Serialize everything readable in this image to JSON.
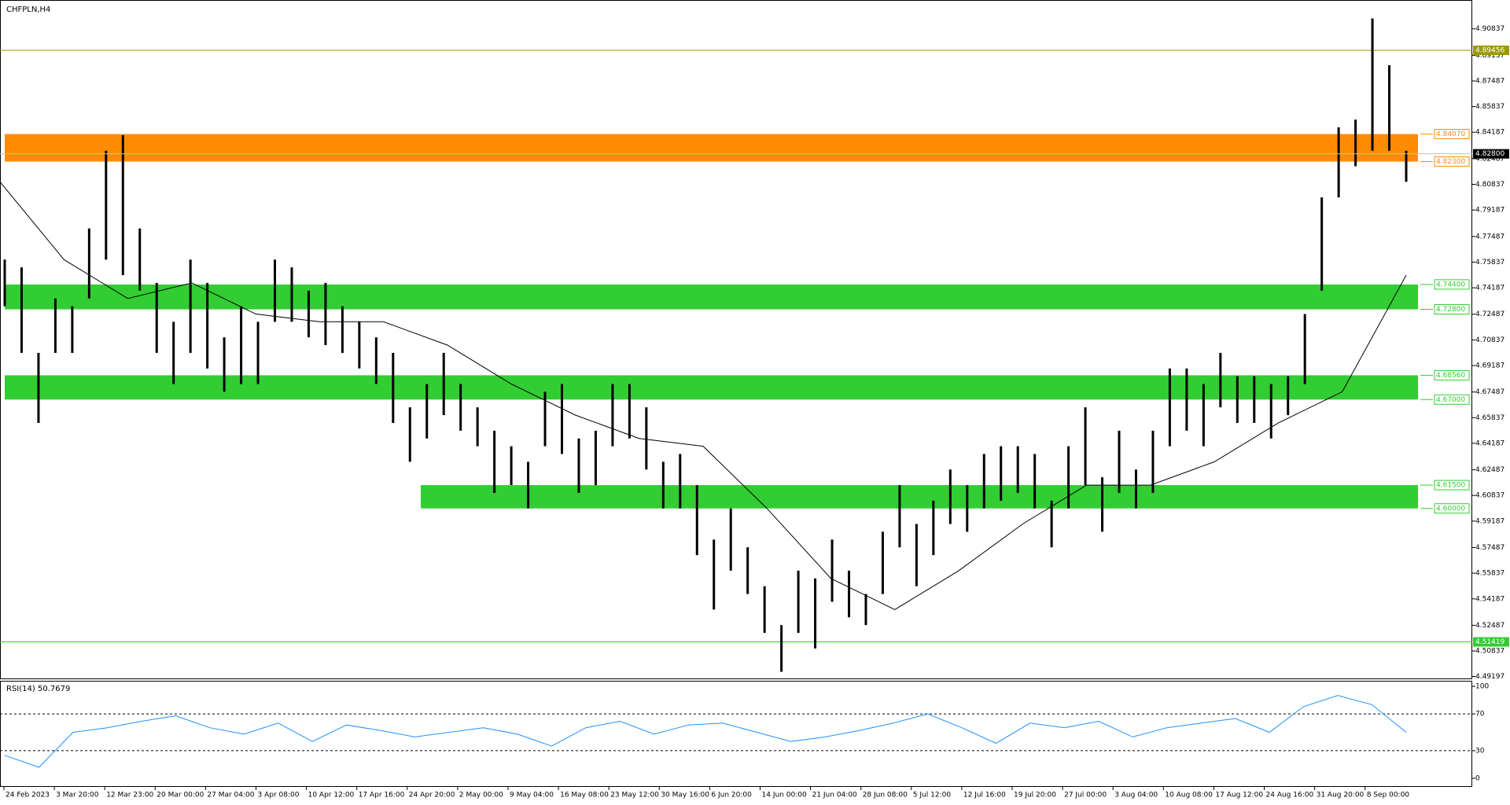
{
  "chart_data": {
    "type": "ohlc",
    "title": "CHFPLN,H4",
    "categories": [
      "24 Feb 2023",
      "3 Mar 20:00",
      "12 Mar 23:00",
      "20 Mar 00:00",
      "27 Mar 04:00",
      "3 Apr 08:00",
      "10 Apr 12:00",
      "17 Apr 16:00",
      "24 Apr 20:00",
      "2 May 00:00",
      "9 May 04:00",
      "16 May 08:00",
      "23 May 12:00",
      "30 May 16:00",
      "6 Jun 20:00",
      "14 Jun 00:00",
      "21 Jun 04:00",
      "28 Jun 08:00",
      "5 Jul 12:00",
      "12 Jul 16:00",
      "19 Jul 20:00",
      "27 Jul 00:00",
      "3 Aug 04:00",
      "10 Aug 08:00",
      "17 Aug 12:00",
      "24 Aug 16:00",
      "31 Aug 20:00",
      "8 Sep 00:00"
    ],
    "high": [
      4.76,
      4.755,
      4.7,
      4.735,
      4.73,
      4.78,
      4.83,
      4.84,
      4.78,
      4.745,
      4.72,
      4.76,
      4.745,
      4.71,
      4.73,
      4.72,
      4.76,
      4.755,
      4.74,
      4.745,
      4.73,
      4.72,
      4.71,
      4.7,
      4.665,
      4.68,
      4.7,
      4.68,
      4.665,
      4.65,
      4.64,
      4.63,
      4.675,
      4.68,
      4.645,
      4.65,
      4.68,
      4.68,
      4.665,
      4.63,
      4.635,
      4.615,
      4.58,
      4.6,
      4.575,
      4.55,
      4.525,
      4.56,
      4.555,
      4.58,
      4.56,
      4.545,
      4.585,
      4.615,
      4.59,
      4.605,
      4.625,
      4.615,
      4.635,
      4.64,
      4.64,
      4.635,
      4.605,
      4.64,
      4.665,
      4.62,
      4.65,
      4.625,
      4.65,
      4.69,
      4.69,
      4.68,
      4.7,
      4.685,
      4.685,
      4.68,
      4.685,
      4.725,
      4.8,
      4.845,
      4.85,
      4.915,
      4.885,
      4.83
    ],
    "low": [
      4.73,
      4.7,
      4.655,
      4.7,
      4.7,
      4.735,
      4.76,
      4.75,
      4.74,
      4.7,
      4.68,
      4.7,
      4.69,
      4.675,
      4.68,
      4.68,
      4.72,
      4.72,
      4.71,
      4.705,
      4.7,
      4.69,
      4.68,
      4.655,
      4.63,
      4.645,
      4.66,
      4.65,
      4.64,
      4.61,
      4.615,
      4.6,
      4.64,
      4.635,
      4.61,
      4.615,
      4.64,
      4.645,
      4.625,
      4.6,
      4.6,
      4.57,
      4.535,
      4.56,
      4.545,
      4.52,
      4.495,
      4.52,
      4.51,
      4.54,
      4.53,
      4.525,
      4.545,
      4.575,
      4.55,
      4.57,
      4.59,
      4.585,
      4.6,
      4.605,
      4.61,
      4.6,
      4.575,
      4.6,
      4.615,
      4.585,
      4.61,
      4.6,
      4.61,
      4.64,
      4.65,
      4.64,
      4.665,
      4.655,
      4.655,
      4.645,
      4.66,
      4.68,
      4.74,
      4.8,
      4.82,
      4.83,
      4.83,
      4.81
    ],
    "color": "#000000",
    "ylim": [
      4.4907,
      4.9269
    ],
    "yticks": [
      4.90837,
      4.89137,
      4.87487,
      4.85837,
      4.84187,
      4.82487,
      4.80837,
      4.79187,
      4.77487,
      4.75837,
      4.74187,
      4.72487,
      4.70837,
      4.69187,
      4.67487,
      4.65837,
      4.64187,
      4.62487,
      4.60837,
      4.59187,
      4.57487,
      4.55837,
      4.54187,
      4.52487,
      4.50837,
      4.49197
    ],
    "moving_average": {
      "values": [
        4.81,
        4.76,
        4.735,
        4.745,
        4.725,
        4.72,
        4.72,
        4.705,
        4.68,
        4.66,
        4.645,
        4.64,
        4.6,
        4.555,
        4.535,
        4.56,
        4.59,
        4.615,
        4.615,
        4.63,
        4.655,
        4.675,
        4.75
      ],
      "color": "#000000"
    },
    "levels": [
      {
        "value": 4.89456,
        "color": "#9a9a00"
      },
      {
        "value": 4.51419,
        "color": "#33cc33"
      }
    ],
    "current_price": {
      "value": 4.828,
      "label": "4.82800"
    },
    "zones": [
      {
        "top": {
          "value": 4.8407,
          "label": "4.84070"
        },
        "bottom": {
          "value": 4.823,
          "label": "4.82300"
        },
        "color": "#ff8c00"
      },
      {
        "top": {
          "value": 4.744,
          "label": "4.74400"
        },
        "bottom": {
          "value": 4.728,
          "label": "4.72800"
        },
        "color": "#32cd32"
      },
      {
        "top": {
          "value": 4.6856,
          "label": "4.68560"
        },
        "bottom": {
          "value": 4.67,
          "label": "4.67000"
        },
        "color": "#32cd32"
      },
      {
        "top": {
          "value": 4.615,
          "label": "4.61500"
        },
        "bottom": {
          "value": 4.6,
          "label": "4.60000"
        },
        "color": "#32cd32"
      }
    ],
    "rsi": {
      "title": "RSI(14) 50.7679",
      "values": [
        25,
        12,
        50,
        55,
        62,
        68,
        55,
        48,
        60,
        40,
        58,
        52,
        45,
        50,
        55,
        48,
        35,
        55,
        62,
        48,
        58,
        60,
        50,
        40,
        45,
        52,
        60,
        70,
        55,
        38,
        60,
        55,
        62,
        45,
        55,
        60,
        65,
        50,
        78,
        90,
        80,
        50
      ],
      "color": "#1e90ff",
      "ylim": [
        -9.4,
        106
      ],
      "yticks": [
        0,
        30,
        70,
        100
      ],
      "levels": [
        30,
        70
      ]
    }
  }
}
